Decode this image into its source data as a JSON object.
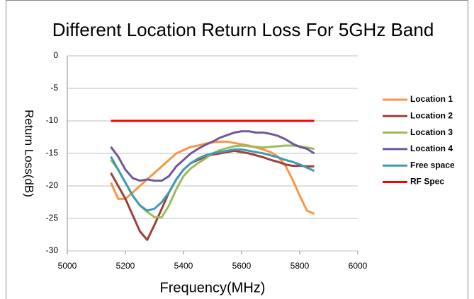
{
  "chart_data": {
    "type": "line",
    "title": "Different Location Return Loss For 5GHz Band",
    "x_label": "Frequency(MHz)",
    "y_label": "Return Loss(dB)",
    "x": [
      5150,
      5175,
      5200,
      5225,
      5250,
      5275,
      5300,
      5325,
      5350,
      5375,
      5400,
      5425,
      5450,
      5475,
      5500,
      5525,
      5550,
      5575,
      5600,
      5625,
      5650,
      5675,
      5700,
      5725,
      5750,
      5775,
      5800,
      5825,
      5850
    ],
    "series": [
      {
        "name": "Location 1",
        "color": "#f79646",
        "values": [
          -19.5,
          -22,
          -22,
          -21,
          -20,
          -19,
          -18,
          -17,
          -16,
          -15,
          -14.5,
          -14,
          -13.8,
          -13.5,
          -13.3,
          -13.2,
          -13.2,
          -13.4,
          -13.6,
          -13.8,
          -14.1,
          -14.4,
          -14.8,
          -15.5,
          -16.8,
          -19,
          -21.5,
          -23.8,
          -24.3
        ]
      },
      {
        "name": "Location 2",
        "color": "#a0403c",
        "values": [
          -18,
          -20,
          -22,
          -24.5,
          -27,
          -28.3,
          -26,
          -23.5,
          -21,
          -19,
          -17.5,
          -16.5,
          -16,
          -15.5,
          -15.2,
          -15,
          -14.8,
          -14.6,
          -14.8,
          -15,
          -15.3,
          -15.6,
          -16,
          -16.3,
          -16.7,
          -16.9,
          -16.9,
          -17,
          -17
        ]
      },
      {
        "name": "Location 3",
        "color": "#9bbb59",
        "values": [
          -16,
          -17.5,
          -19.5,
          -21.5,
          -23,
          -24,
          -24.8,
          -24.8,
          -23,
          -20.5,
          -18.5,
          -17.3,
          -16.5,
          -15.8,
          -15,
          -14.5,
          -14.2,
          -13.9,
          -13.8,
          -13.9,
          -14,
          -14.1,
          -14,
          -13.9,
          -13.8,
          -13.8,
          -13.9,
          -14.1,
          -14.3
        ]
      },
      {
        "name": "Location 4",
        "color": "#71579a",
        "values": [
          -14,
          -15.5,
          -17.5,
          -18.8,
          -19.2,
          -19,
          -19.2,
          -19.2,
          -18.5,
          -17,
          -16,
          -15,
          -14.3,
          -13.7,
          -13.2,
          -12.6,
          -12.2,
          -11.8,
          -11.6,
          -11.6,
          -11.8,
          -11.8,
          -12,
          -12.3,
          -12.8,
          -13.5,
          -14,
          -14.3,
          -15
        ]
      },
      {
        "name": "Free space",
        "color": "#3f9ab5",
        "values": [
          -15.5,
          -17.5,
          -19.5,
          -21.5,
          -23,
          -23.8,
          -23.5,
          -22.5,
          -21,
          -19,
          -17.5,
          -16.5,
          -15.8,
          -15.3,
          -15,
          -14.8,
          -14.6,
          -14.4,
          -14.4,
          -14.6,
          -14.8,
          -15,
          -15.3,
          -15.6,
          -16,
          -16.3,
          -16.7,
          -17.2,
          -17.7
        ]
      },
      {
        "name": "RF Spec",
        "color": "#ff0000",
        "values": [
          -10,
          -10,
          -10,
          -10,
          -10,
          -10,
          -10,
          -10,
          -10,
          -10,
          -10,
          -10,
          -10,
          -10,
          -10,
          -10,
          -10,
          -10,
          -10,
          -10,
          -10,
          -10,
          -10,
          -10,
          -10,
          -10,
          -10,
          -10,
          -10
        ]
      }
    ],
    "xlim": [
      5000,
      6000
    ],
    "xticks": [
      5000,
      5200,
      5400,
      5600,
      5800,
      6000
    ],
    "ylim": [
      -30,
      0
    ],
    "yticks": [
      -30,
      -25,
      -20,
      -15,
      -10,
      -5,
      0
    ],
    "grid": true,
    "legend": "right"
  }
}
